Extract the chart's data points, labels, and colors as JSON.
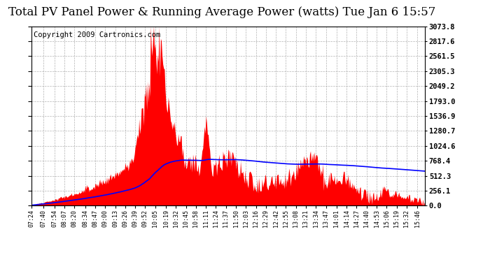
{
  "title": "Total PV Panel Power & Running Average Power (watts) Tue Jan 6 15:57",
  "copyright": "Copyright 2009 Cartronics.com",
  "background_color": "#ffffff",
  "plot_bg_color": "#ffffff",
  "grid_color": "#888888",
  "ytick_labels": [
    "0.0",
    "256.1",
    "512.3",
    "768.4",
    "1024.6",
    "1280.7",
    "1536.9",
    "1793.0",
    "2049.2",
    "2305.3",
    "2561.5",
    "2817.6",
    "3073.8"
  ],
  "ytick_values": [
    0.0,
    256.1,
    512.3,
    768.4,
    1024.6,
    1280.7,
    1536.9,
    1793.0,
    2049.2,
    2305.3,
    2561.5,
    2817.6,
    3073.8
  ],
  "ymax": 3073.8,
  "ymin": 0.0,
  "xtick_labels": [
    "07:24",
    "07:40",
    "07:54",
    "08:07",
    "08:20",
    "08:34",
    "08:47",
    "09:00",
    "09:13",
    "09:26",
    "09:39",
    "09:52",
    "10:05",
    "10:19",
    "10:32",
    "10:45",
    "10:58",
    "11:11",
    "11:24",
    "11:37",
    "11:50",
    "12:03",
    "12:16",
    "12:29",
    "12:42",
    "12:55",
    "13:08",
    "13:21",
    "13:34",
    "13:47",
    "14:01",
    "14:14",
    "14:27",
    "14:40",
    "14:53",
    "15:06",
    "15:19",
    "15:32",
    "15:46"
  ],
  "bar_color": "#ff0000",
  "line_color": "#0000ff",
  "title_fontsize": 12,
  "copyright_fontsize": 7.5
}
